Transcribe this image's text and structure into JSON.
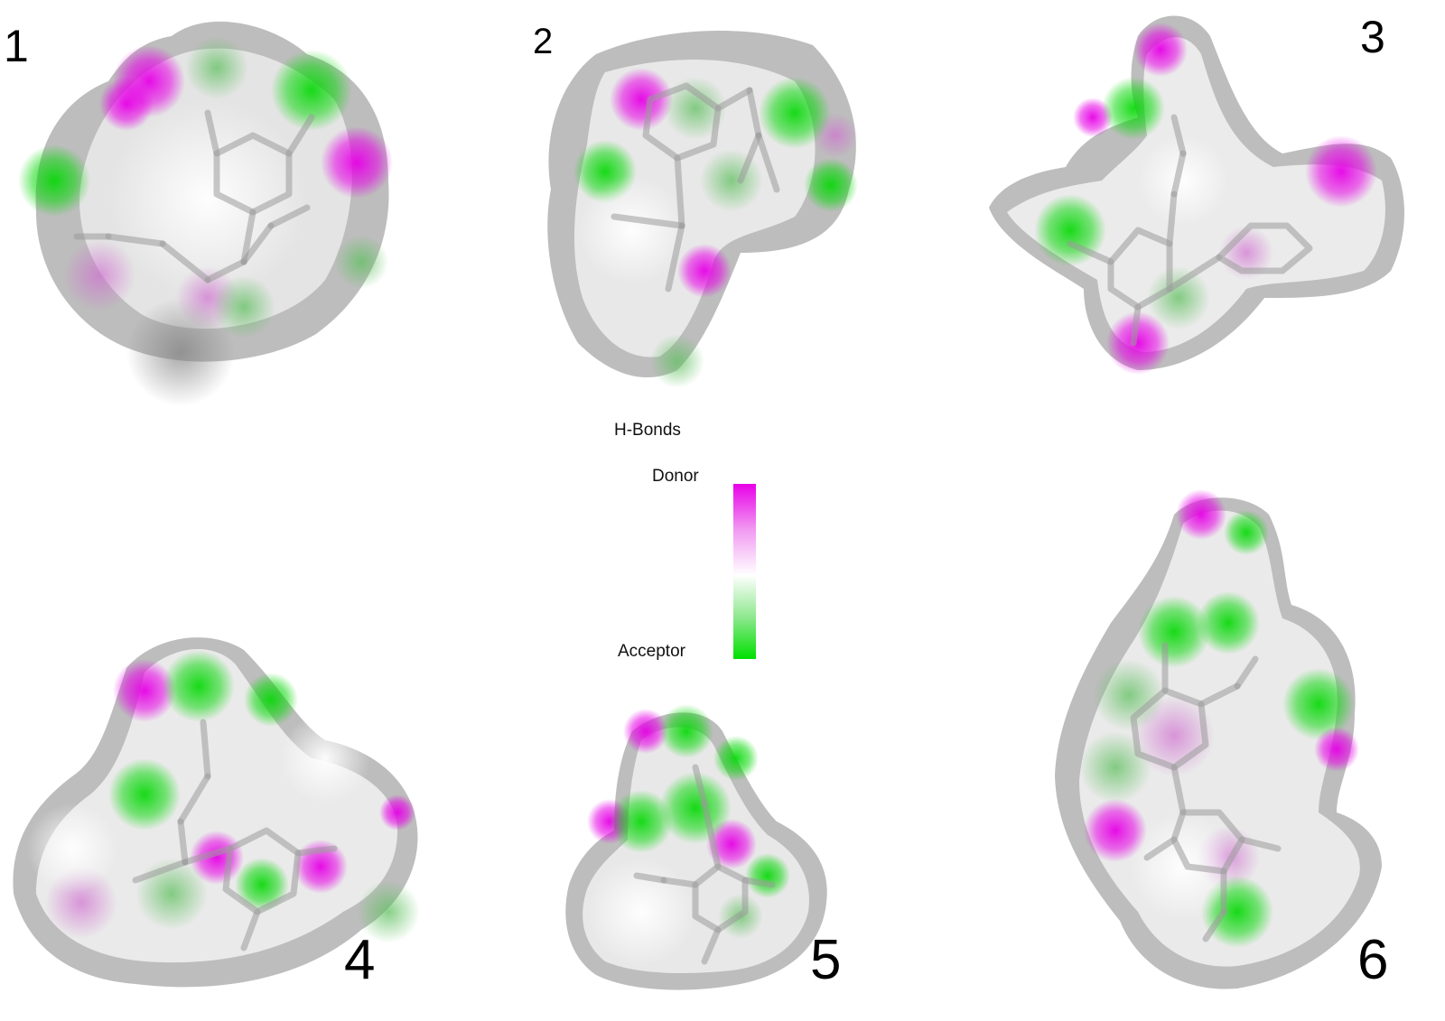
{
  "panels": [
    {
      "label": "1"
    },
    {
      "label": "2"
    },
    {
      "label": "3"
    },
    {
      "label": "4"
    },
    {
      "label": "5"
    },
    {
      "label": "6"
    }
  ],
  "legend": {
    "title": "H-Bonds",
    "top_label": "Donor",
    "bottom_label": "Acceptor",
    "colors": {
      "donor": "#e800e8",
      "neutral": "#ffffff",
      "acceptor": "#00e000"
    }
  }
}
